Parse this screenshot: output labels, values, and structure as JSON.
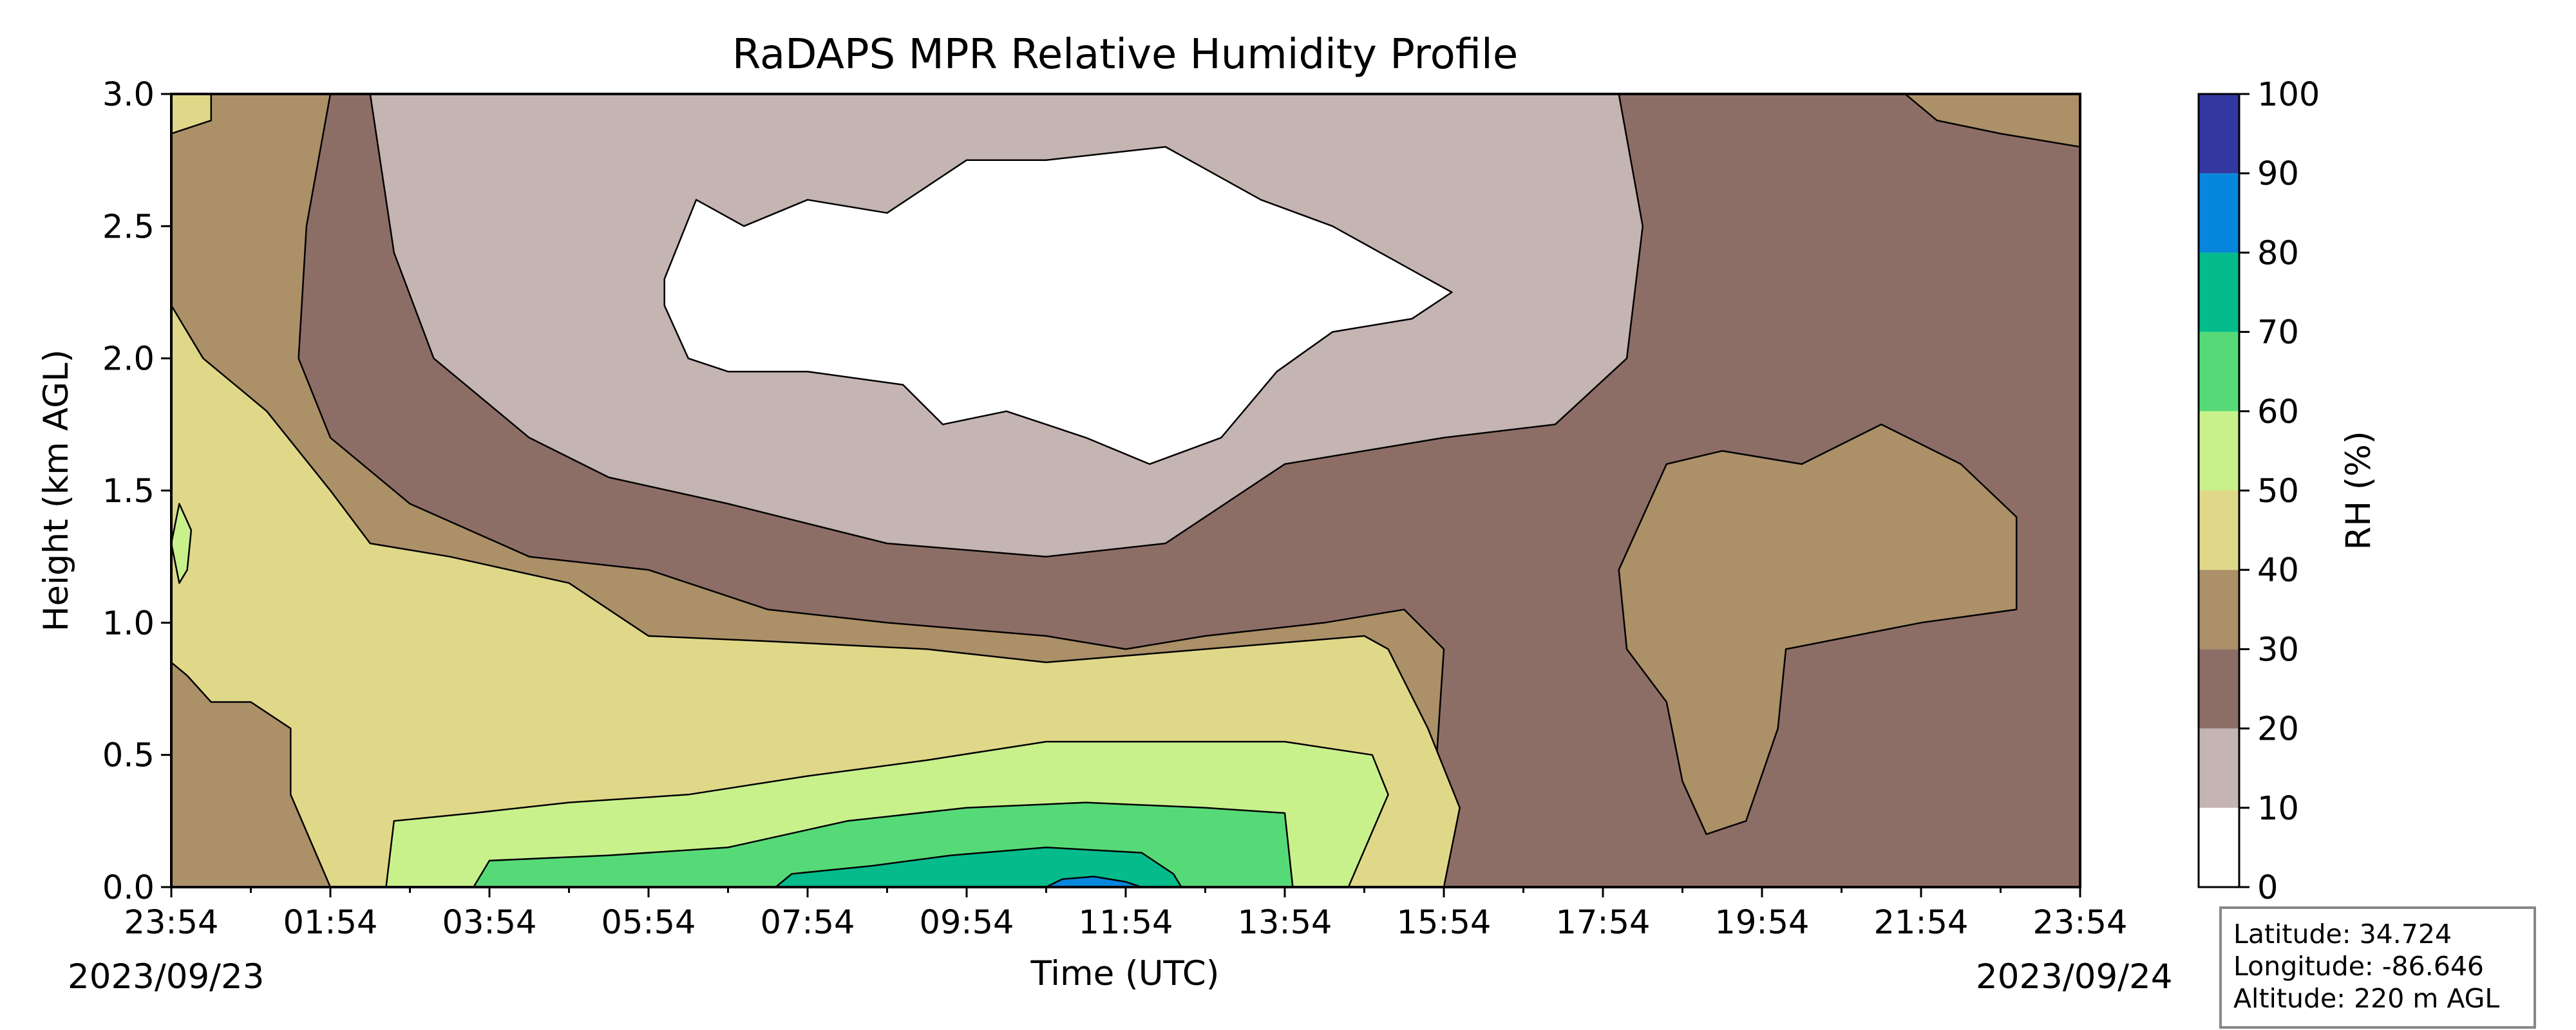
{
  "chart_data": {
    "type": "heatmap",
    "subtype": "filled-contour",
    "title": "RaDAPS MPR Relative Humidity Profile",
    "xlabel": "Time (UTC)",
    "ylabel": "Height (km AGL)",
    "colorbar_label": "RH (%)",
    "x_tick_labels": [
      "23:54",
      "01:54",
      "03:54",
      "05:54",
      "07:54",
      "09:54",
      "11:54",
      "13:54",
      "15:54",
      "17:54",
      "19:54",
      "21:54",
      "23:54"
    ],
    "x_date_labels": [
      "2023/09/23",
      "2023/09/24"
    ],
    "y_ticks": [
      0.0,
      0.5,
      1.0,
      1.5,
      2.0,
      2.5,
      3.0
    ],
    "y_tick_labels": [
      "0.0",
      "0.5",
      "1.0",
      "1.5",
      "2.0",
      "2.5",
      "3.0"
    ],
    "ylim": [
      0,
      3
    ],
    "xlim_hours": [
      0,
      24
    ],
    "contour_levels": [
      0,
      10,
      20,
      30,
      40,
      50,
      60,
      70,
      80,
      90,
      100
    ],
    "level_colors": [
      "#ffffff",
      "#c4b4b2",
      "#8d6e66",
      "#ab9068",
      "#e0d889",
      "#c8f18c",
      "#56da78",
      "#04bb8c",
      "#0686dc",
      "#3337a0"
    ],
    "regions": [
      {
        "bin": "10-20",
        "polygon": [
          [
            2.5,
            3.0
          ],
          [
            18.2,
            3.0
          ],
          [
            18.5,
            2.5
          ],
          [
            18.3,
            2.0
          ],
          [
            17.4,
            1.75
          ],
          [
            16.0,
            1.7
          ],
          [
            14.0,
            1.6
          ],
          [
            12.5,
            1.3
          ],
          [
            11.0,
            1.25
          ],
          [
            9.0,
            1.3
          ],
          [
            7.0,
            1.45
          ],
          [
            5.5,
            1.55
          ],
          [
            4.5,
            1.7
          ],
          [
            3.3,
            2.0
          ],
          [
            2.8,
            2.4
          ]
        ]
      },
      {
        "bin": "0-10",
        "polygon": [
          [
            6.2,
            2.3
          ],
          [
            6.6,
            2.6
          ],
          [
            7.2,
            2.5
          ],
          [
            8.0,
            2.6
          ],
          [
            9.0,
            2.55
          ],
          [
            10.0,
            2.75
          ],
          [
            11.0,
            2.75
          ],
          [
            12.5,
            2.8
          ],
          [
            13.7,
            2.6
          ],
          [
            14.6,
            2.5
          ],
          [
            16.1,
            2.25
          ],
          [
            15.6,
            2.15
          ],
          [
            14.6,
            2.1
          ],
          [
            13.9,
            1.95
          ],
          [
            13.2,
            1.7
          ],
          [
            12.3,
            1.6
          ],
          [
            11.5,
            1.7
          ],
          [
            10.5,
            1.8
          ],
          [
            9.7,
            1.75
          ],
          [
            9.2,
            1.9
          ],
          [
            8.0,
            1.95
          ],
          [
            7.0,
            1.95
          ],
          [
            6.5,
            2.0
          ],
          [
            6.2,
            2.2
          ]
        ]
      },
      {
        "bin": "30-40",
        "polygon": [
          [
            0.0,
            3.0
          ],
          [
            2.0,
            3.0
          ],
          [
            1.7,
            2.5
          ],
          [
            1.6,
            2.0
          ],
          [
            2.0,
            1.7
          ],
          [
            3.0,
            1.45
          ],
          [
            4.5,
            1.25
          ],
          [
            6.0,
            1.2
          ],
          [
            7.5,
            1.05
          ],
          [
            9.0,
            1.0
          ],
          [
            11.0,
            0.95
          ],
          [
            12.0,
            0.9
          ],
          [
            13.0,
            0.95
          ],
          [
            14.5,
            1.0
          ],
          [
            15.5,
            1.05
          ],
          [
            16.0,
            0.9
          ],
          [
            15.8,
            0.0
          ],
          [
            0.0,
            0.0
          ]
        ]
      },
      {
        "bin": "30-40",
        "polygon": [
          [
            18.2,
            1.2
          ],
          [
            18.8,
            1.6
          ],
          [
            19.5,
            1.65
          ],
          [
            20.5,
            1.6
          ],
          [
            21.5,
            1.75
          ],
          [
            22.5,
            1.6
          ],
          [
            23.2,
            1.4
          ],
          [
            23.2,
            1.05
          ],
          [
            22.0,
            1.0
          ],
          [
            20.3,
            0.9
          ],
          [
            20.2,
            0.6
          ],
          [
            19.8,
            0.25
          ],
          [
            19.3,
            0.2
          ],
          [
            19.0,
            0.4
          ],
          [
            18.8,
            0.7
          ],
          [
            18.3,
            0.9
          ]
        ]
      },
      {
        "bin": "30-40",
        "polygon": [
          [
            21.8,
            3.0
          ],
          [
            24.0,
            3.0
          ],
          [
            24.0,
            2.8
          ],
          [
            23.0,
            2.85
          ],
          [
            22.2,
            2.9
          ]
        ]
      },
      {
        "bin": "40-50",
        "polygon": [
          [
            0.0,
            2.2
          ],
          [
            0.4,
            2.0
          ],
          [
            0.8,
            1.9
          ],
          [
            1.2,
            1.8
          ],
          [
            2.0,
            1.5
          ],
          [
            2.5,
            1.3
          ],
          [
            3.5,
            1.25
          ],
          [
            5.0,
            1.15
          ],
          [
            6.0,
            0.95
          ],
          [
            7.5,
            0.93
          ],
          [
            9.5,
            0.9
          ],
          [
            11.0,
            0.85
          ],
          [
            13.0,
            0.9
          ],
          [
            15.0,
            0.95
          ],
          [
            15.3,
            0.9
          ],
          [
            15.8,
            0.6
          ],
          [
            16.2,
            0.3
          ],
          [
            16.0,
            0.0
          ],
          [
            2.0,
            0.0
          ],
          [
            1.5,
            0.35
          ],
          [
            1.5,
            0.6
          ],
          [
            1.0,
            0.7
          ],
          [
            0.5,
            0.7
          ],
          [
            0.2,
            0.8
          ],
          [
            0.0,
            0.85
          ]
        ]
      },
      {
        "bin": "40-50",
        "polygon": [
          [
            0.0,
            3.0
          ],
          [
            0.5,
            3.0
          ],
          [
            0.5,
            2.9
          ],
          [
            0.0,
            2.85
          ]
        ]
      },
      {
        "bin": "50-60",
        "polygon": [
          [
            2.8,
            0.25
          ],
          [
            3.8,
            0.28
          ],
          [
            5.0,
            0.32
          ],
          [
            6.5,
            0.35
          ],
          [
            8.0,
            0.42
          ],
          [
            9.5,
            0.48
          ],
          [
            11.0,
            0.55
          ],
          [
            13.0,
            0.55
          ],
          [
            14.0,
            0.55
          ],
          [
            15.1,
            0.5
          ],
          [
            15.3,
            0.35
          ],
          [
            14.8,
            0.0
          ],
          [
            2.7,
            0.0
          ]
        ]
      },
      {
        "bin": "50-60",
        "polygon": [
          [
            0.0,
            1.3
          ],
          [
            0.1,
            1.45
          ],
          [
            0.25,
            1.35
          ],
          [
            0.2,
            1.2
          ],
          [
            0.1,
            1.15
          ]
        ]
      },
      {
        "bin": "60-70",
        "polygon": [
          [
            4.0,
            0.1
          ],
          [
            5.5,
            0.12
          ],
          [
            7.0,
            0.15
          ],
          [
            8.5,
            0.25
          ],
          [
            10.0,
            0.3
          ],
          [
            11.5,
            0.32
          ],
          [
            13.0,
            0.3
          ],
          [
            14.0,
            0.28
          ],
          [
            14.1,
            0.0
          ],
          [
            3.8,
            0.0
          ]
        ]
      },
      {
        "bin": "70-80",
        "polygon": [
          [
            7.8,
            0.05
          ],
          [
            8.8,
            0.08
          ],
          [
            9.8,
            0.12
          ],
          [
            11.0,
            0.15
          ],
          [
            12.2,
            0.13
          ],
          [
            12.6,
            0.05
          ],
          [
            12.7,
            0.0
          ],
          [
            7.6,
            0.0
          ]
        ]
      },
      {
        "bin": "80-90",
        "polygon": [
          [
            11.0,
            0.0
          ],
          [
            11.2,
            0.03
          ],
          [
            11.6,
            0.04
          ],
          [
            12.0,
            0.02
          ],
          [
            12.2,
            0.0
          ]
        ]
      }
    ],
    "info_box": {
      "latitude": "Latitude: 34.724",
      "longitude": "Longitude: -86.646",
      "altitude": "Altitude: 220 m AGL"
    }
  }
}
